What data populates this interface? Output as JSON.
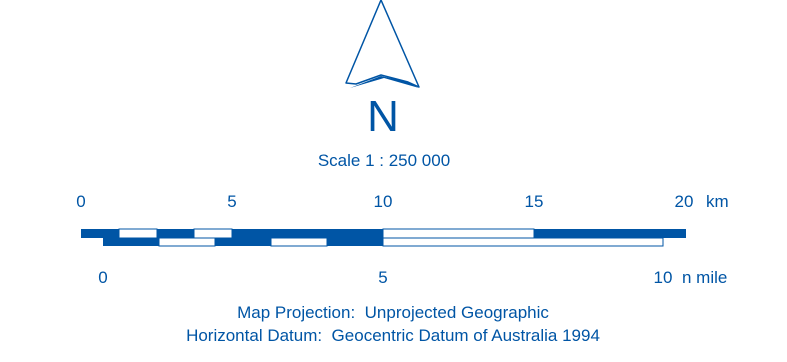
{
  "north_arrow": {
    "letter": "N"
  },
  "scale": {
    "text": "Scale 1 : 250 000"
  },
  "km_bar": {
    "ticks": [
      "0",
      "5",
      "10",
      "15",
      "20"
    ],
    "unit": "km"
  },
  "nmile_bar": {
    "ticks": [
      "0",
      "5",
      "10"
    ],
    "unit": "n mile"
  },
  "footer": {
    "projection": "Map Projection:  Unprojected Geographic",
    "datum": "Horizontal Datum:  Geocentric Datum of Australia 1994"
  },
  "colors": {
    "primary": "#0055a5",
    "background": "#ffffff"
  }
}
